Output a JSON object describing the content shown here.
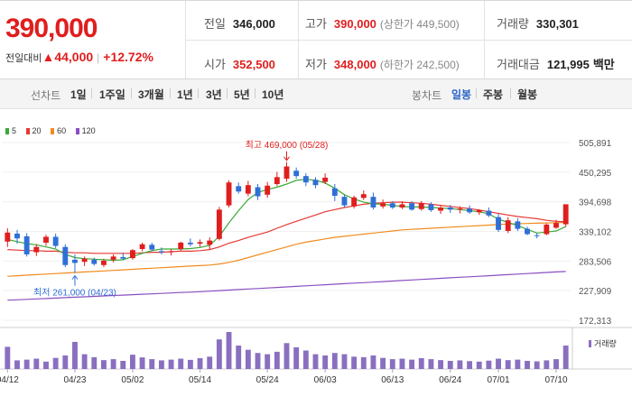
{
  "header": {
    "price": "390,000",
    "change_label": "전일대비",
    "change_arrow": "▲",
    "change_amount": "44,000",
    "change_pct": "+12.72%",
    "prev_close": {
      "label": "전일",
      "value": "346,000"
    },
    "high": {
      "label": "고가",
      "value": "390,000",
      "sub": "(상한가 449,500)"
    },
    "volume": {
      "label": "거래량",
      "value": "330,301"
    },
    "open": {
      "label": "시가",
      "value": "352,500"
    },
    "low": {
      "label": "저가",
      "value": "348,000",
      "sub": "(하한가 242,500)"
    },
    "amount": {
      "label": "거래대금",
      "value": "121,995",
      "unit": "백만"
    }
  },
  "tabs": {
    "line_label": "선차트",
    "line_tabs": [
      "1일",
      "1주일",
      "3개월",
      "1년",
      "3년",
      "5년",
      "10년"
    ],
    "candle_label": "봉차트",
    "candle_tabs": [
      "일봉",
      "주봉",
      "월봉"
    ],
    "active_candle": "일봉"
  },
  "legend": [
    {
      "label": "5",
      "color": "#3aaa35"
    },
    {
      "label": "20",
      "color": "#e53935"
    },
    {
      "label": "60",
      "color": "#f08c1e"
    },
    {
      "label": "120",
      "color": "#8a4fc0"
    }
  ],
  "volume_legend": "거래량",
  "colors": {
    "up": "#e01e1e",
    "down": "#2f6fd6"
  },
  "chart_data": {
    "type": "candlestick",
    "y_ticks": [
      "505,891",
      "450,295",
      "394,698",
      "339,102",
      "283,506",
      "227,909",
      "172,313"
    ],
    "ylim": [
      172313,
      505891
    ],
    "x_tick_labels": [
      "04/12",
      "04/23",
      "05/02",
      "05/14",
      "05/24",
      "06/03",
      "06/13",
      "06/24",
      "07/01",
      "07/10"
    ],
    "x_tick_index": [
      0,
      7,
      13,
      20,
      27,
      33,
      40,
      46,
      51,
      57
    ],
    "high_annotation": "최고 469,000 (05/28)",
    "high_value": 469000,
    "high_index": 29,
    "low_annotation": "최저 261,000 (04/23)",
    "low_value": 261000,
    "low_index": 7,
    "ohlc": [
      [
        320000,
        345000,
        310000,
        337000
      ],
      [
        335000,
        342000,
        316000,
        326000
      ],
      [
        330000,
        336000,
        292000,
        296000
      ],
      [
        300000,
        315000,
        293000,
        310000
      ],
      [
        318000,
        333000,
        312000,
        329000
      ],
      [
        329000,
        335000,
        308000,
        312000
      ],
      [
        310000,
        315000,
        272000,
        276000
      ],
      [
        286000,
        296000,
        261000,
        280000
      ],
      [
        282000,
        292000,
        274000,
        288000
      ],
      [
        286000,
        290000,
        275000,
        278000
      ],
      [
        276000,
        288000,
        272000,
        284000
      ],
      [
        286000,
        296000,
        281000,
        292000
      ],
      [
        291000,
        299000,
        286000,
        288000
      ],
      [
        289000,
        306000,
        286000,
        304000
      ],
      [
        306000,
        318000,
        302000,
        315000
      ],
      [
        314000,
        318000,
        302000,
        305000
      ],
      [
        302000,
        309000,
        296000,
        300000
      ],
      [
        300000,
        306000,
        294000,
        302000
      ],
      [
        306000,
        320000,
        303000,
        318000
      ],
      [
        318000,
        326000,
        311000,
        315000
      ],
      [
        316000,
        324000,
        310000,
        319000
      ],
      [
        314000,
        328000,
        305000,
        322000
      ],
      [
        325000,
        385000,
        322000,
        380000
      ],
      [
        388000,
        435000,
        384000,
        431000
      ],
      [
        424000,
        431000,
        410000,
        414000
      ],
      [
        410000,
        434000,
        405000,
        426000
      ],
      [
        422000,
        428000,
        398000,
        405000
      ],
      [
        408000,
        432000,
        402000,
        425000
      ],
      [
        428000,
        451000,
        424000,
        441000
      ],
      [
        438000,
        469000,
        432000,
        461000
      ],
      [
        453000,
        459000,
        438000,
        443000
      ],
      [
        443000,
        448000,
        424000,
        431000
      ],
      [
        436000,
        441000,
        420000,
        426000
      ],
      [
        432000,
        448000,
        428000,
        440000
      ],
      [
        420000,
        428000,
        396000,
        406000
      ],
      [
        404000,
        408000,
        384000,
        388000
      ],
      [
        386000,
        406000,
        382000,
        403000
      ],
      [
        402000,
        416000,
        398000,
        409000
      ],
      [
        404000,
        412000,
        380000,
        384000
      ],
      [
        386000,
        399000,
        382000,
        392000
      ],
      [
        392000,
        396000,
        381000,
        384000
      ],
      [
        384000,
        396000,
        381000,
        390000
      ],
      [
        392000,
        396000,
        378000,
        380000
      ],
      [
        381000,
        396000,
        378000,
        392000
      ],
      [
        390000,
        394000,
        376000,
        379000
      ],
      [
        378000,
        388000,
        372000,
        384000
      ],
      [
        384000,
        389000,
        374000,
        380000
      ],
      [
        380000,
        386000,
        373000,
        382000
      ],
      [
        382000,
        388000,
        372000,
        375000
      ],
      [
        375000,
        381000,
        370000,
        379000
      ],
      [
        378000,
        384000,
        366000,
        369000
      ],
      [
        366000,
        372000,
        338000,
        342000
      ],
      [
        340000,
        366000,
        336000,
        360000
      ],
      [
        358000,
        364000,
        340000,
        344000
      ],
      [
        344000,
        348000,
        332000,
        334000
      ],
      [
        332000,
        336000,
        326000,
        331000
      ],
      [
        334000,
        354000,
        332000,
        352000
      ],
      [
        346000,
        361000,
        344000,
        355000
      ],
      [
        352500,
        390000,
        348000,
        390000
      ]
    ],
    "volume": [
      90,
      35,
      38,
      42,
      30,
      45,
      55,
      110,
      60,
      48,
      36,
      40,
      33,
      58,
      47,
      40,
      35,
      38,
      42,
      37,
      44,
      50,
      120,
      150,
      95,
      78,
      65,
      60,
      70,
      105,
      88,
      75,
      60,
      55,
      65,
      60,
      50,
      48,
      55,
      45,
      40,
      42,
      38,
      44,
      40,
      36,
      33,
      35,
      32,
      30,
      34,
      42,
      36,
      38,
      33,
      31,
      35,
      40,
      95
    ],
    "ma5": [
      324000,
      320000,
      316000,
      314000,
      310000,
      306000,
      296000,
      290000,
      288000,
      287000,
      286000,
      285000,
      286000,
      292000,
      298000,
      303000,
      306000,
      306000,
      306000,
      307000,
      309000,
      313000,
      330000,
      355000,
      378000,
      399000,
      412000,
      418000,
      422000,
      428000,
      435000,
      437000,
      435000,
      430000,
      420000,
      408000,
      400000,
      394000,
      391000,
      390000,
      388000,
      386000,
      385000,
      385000,
      384000,
      383000,
      382000,
      380000,
      378000,
      376000,
      372000,
      362000,
      356000,
      350000,
      343000,
      336000,
      338000,
      340000,
      348000
    ],
    "ma20": [
      305000,
      304000,
      303000,
      303000,
      302000,
      302000,
      300000,
      299000,
      299000,
      298000,
      298000,
      298000,
      298000,
      298000,
      299000,
      300000,
      300000,
      301000,
      302000,
      302000,
      303000,
      305000,
      310000,
      317000,
      322000,
      328000,
      333000,
      338000,
      345000,
      352000,
      358000,
      364000,
      370000,
      376000,
      380000,
      384000,
      387000,
      390000,
      392000,
      393000,
      394000,
      394000,
      393000,
      392000,
      390000,
      388000,
      386000,
      384000,
      382000,
      379000,
      376000,
      373000,
      370000,
      367000,
      365000,
      363000,
      360000,
      358000,
      357000
    ],
    "ma60": [
      255000,
      256000,
      257000,
      258000,
      259000,
      260000,
      261000,
      262000,
      263000,
      264000,
      265000,
      266000,
      267000,
      268000,
      269000,
      270000,
      271000,
      272000,
      273000,
      274000,
      275000,
      276000,
      278000,
      281000,
      285000,
      290000,
      295000,
      300000,
      305000,
      310000,
      315000,
      319000,
      322000,
      325000,
      328000,
      330000,
      332000,
      334000,
      336000,
      338000,
      340000,
      342000,
      343000,
      344000,
      345000,
      346000,
      347000,
      348000,
      349000,
      350000,
      351000,
      352000,
      353000,
      353500,
      354000,
      354500,
      355000,
      355500,
      356000
    ],
    "ma120": [
      210000,
      210800,
      211600,
      212400,
      213200,
      214000,
      214800,
      215600,
      216400,
      217200,
      218000,
      218800,
      219600,
      220400,
      221200,
      222000,
      222800,
      223600,
      224400,
      225200,
      226000,
      227000,
      228000,
      229000,
      230000,
      231000,
      232000,
      233000,
      234000,
      235000,
      236000,
      237000,
      238000,
      239000,
      240000,
      241000,
      242000,
      243000,
      244000,
      245000,
      246000,
      247000,
      248000,
      249000,
      250000,
      251000,
      252000,
      253000,
      254000,
      255000,
      256000,
      257000,
      258000,
      259000,
      260000,
      261000,
      262000,
      263000,
      264000
    ]
  }
}
